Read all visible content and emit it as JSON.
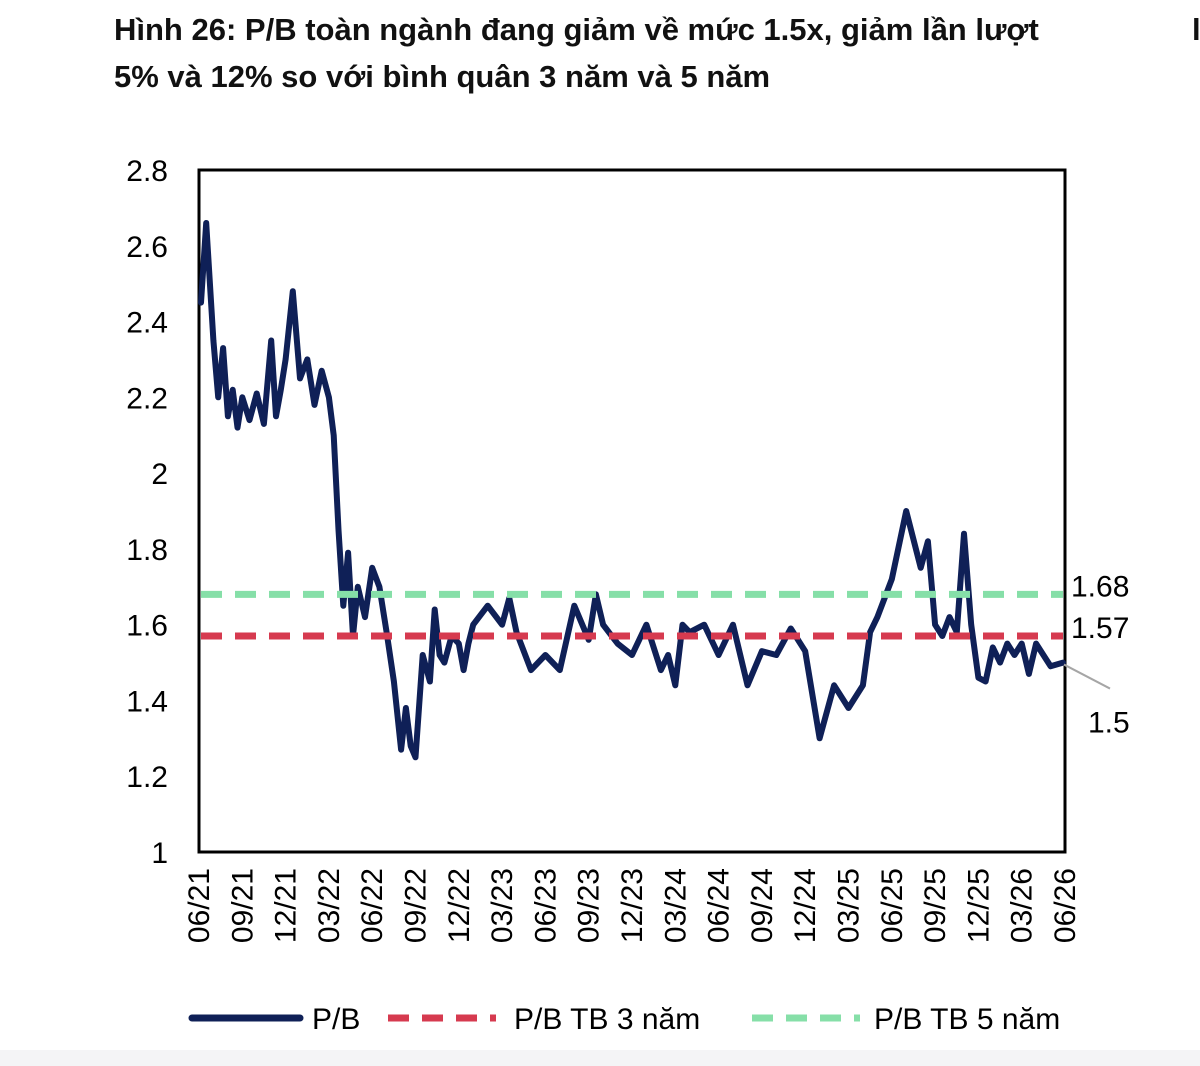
{
  "title_line1": "Hình 26: P/B toàn ngành đang giảm về mức 1.5x, giảm lần lượt",
  "title_line2": "5% và 12% so với bình quân 3 năm và 5 năm",
  "chart_data": {
    "type": "line",
    "title": "Hình 26: P/B toàn ngành đang giảm về mức 1.5x, giảm lần lượt 5% và 12% so với bình quân 3 năm và 5 năm",
    "xlabel": "",
    "ylabel": "",
    "ylim": [
      1,
      2.8
    ],
    "yticks": [
      "1",
      "1.2",
      "1.4",
      "1.6",
      "1.8",
      "2",
      "2.2",
      "2.4",
      "2.6",
      "2.8"
    ],
    "xlim": [
      "06/21",
      "06/26"
    ],
    "xticks": [
      "06/21",
      "09/21",
      "12/21",
      "03/22",
      "06/22",
      "09/22",
      "12/22",
      "03/23",
      "06/23",
      "09/23",
      "12/23",
      "03/24",
      "06/24",
      "09/24",
      "12/24",
      "03/25",
      "06/25",
      "09/25",
      "12/25",
      "03/26",
      "06/26"
    ],
    "grid": false,
    "legend_position": "bottom",
    "series": [
      {
        "name": "P/B",
        "color": "#0f2057",
        "style": "solid",
        "x": [
          "06/21",
          "06/21",
          "07/21",
          "07/21",
          "07/21",
          "08/21",
          "08/21",
          "08/21",
          "09/21",
          "09/21",
          "10/21",
          "10/21",
          "11/21",
          "11/21",
          "11/21",
          "12/21",
          "12/21",
          "01/22",
          "01/22",
          "02/22",
          "02/22",
          "03/22",
          "03/22",
          "03/22",
          "04/22",
          "04/22",
          "04/22",
          "05/22",
          "05/22",
          "06/22",
          "06/22",
          "07/22",
          "07/22",
          "08/22",
          "08/22",
          "08/22",
          "09/22",
          "09/22",
          "10/22",
          "10/22",
          "10/22",
          "11/22",
          "11/22",
          "12/22",
          "12/22",
          "12/22",
          "01/23",
          "02/23",
          "03/23",
          "03/23",
          "04/23",
          "05/23",
          "06/23",
          "07/23",
          "08/23",
          "09/23",
          "09/23",
          "10/23",
          "11/23",
          "12/23",
          "01/24",
          "02/24",
          "02/24",
          "03/24",
          "03/24",
          "04/24",
          "05/24",
          "06/24",
          "07/24",
          "08/24",
          "09/24",
          "10/24",
          "11/24",
          "12/24",
          "01/25",
          "02/25",
          "03/25",
          "04/25",
          "04/25",
          "05/25",
          "06/25",
          "07/25",
          "08/25",
          "08/25",
          "09/25",
          "09/25",
          "10/25",
          "10/25",
          "11/25",
          "11/25",
          "12/25",
          "12/25",
          "01/26",
          "01/26",
          "02/26",
          "02/26",
          "03/26",
          "03/26",
          "04/26",
          "05/26",
          "06/26"
        ],
        "values": [
          2.45,
          2.66,
          2.35,
          2.2,
          2.33,
          2.15,
          2.22,
          2.12,
          2.2,
          2.14,
          2.21,
          2.13,
          2.35,
          2.15,
          2.22,
          2.3,
          2.48,
          2.25,
          2.3,
          2.18,
          2.27,
          2.2,
          2.1,
          1.85,
          1.65,
          1.79,
          1.57,
          1.7,
          1.62,
          1.75,
          1.7,
          1.58,
          1.45,
          1.27,
          1.38,
          1.28,
          1.25,
          1.52,
          1.45,
          1.64,
          1.52,
          1.5,
          1.57,
          1.55,
          1.48,
          1.55,
          1.6,
          1.65,
          1.6,
          1.67,
          1.58,
          1.48,
          1.52,
          1.48,
          1.65,
          1.56,
          1.68,
          1.6,
          1.55,
          1.52,
          1.6,
          1.48,
          1.52,
          1.44,
          1.6,
          1.58,
          1.6,
          1.52,
          1.6,
          1.44,
          1.53,
          1.52,
          1.59,
          1.53,
          1.3,
          1.44,
          1.38,
          1.44,
          1.58,
          1.62,
          1.72,
          1.9,
          1.75,
          1.82,
          1.6,
          1.57,
          1.62,
          1.58,
          1.84,
          1.6,
          1.46,
          1.45,
          1.54,
          1.5,
          1.55,
          1.52,
          1.55,
          1.47,
          1.55,
          1.49,
          1.5
        ]
      },
      {
        "name": "P/B TB 3 năm",
        "color": "#d63a4f",
        "style": "dashed",
        "constant": 1.57
      },
      {
        "name": "P/B TB 5 năm",
        "color": "#86dfa8",
        "style": "dashed",
        "constant": 1.68
      }
    ],
    "annotations": [
      {
        "text": "1.68",
        "y": 1.68
      },
      {
        "text": "1.57",
        "y": 1.57
      },
      {
        "text": "1.5",
        "y": 1.5,
        "with_leader": true
      }
    ]
  }
}
